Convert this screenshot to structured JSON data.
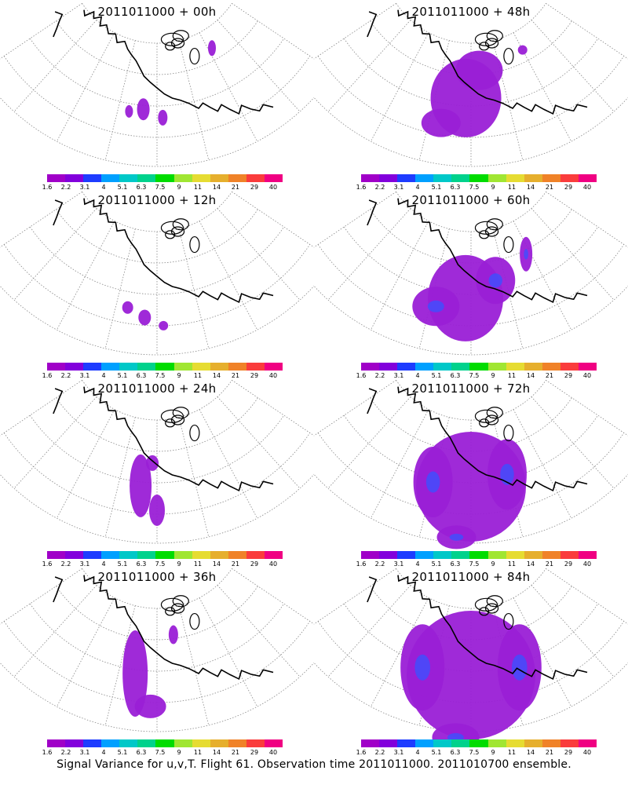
{
  "panels": [
    {
      "title": "2011011000 + 00h",
      "spread": 0
    },
    {
      "title": "2011011000 + 48h",
      "spread": 4
    },
    {
      "title": "2011011000 + 12h",
      "spread": 1
    },
    {
      "title": "2011011000 + 60h",
      "spread": 5
    },
    {
      "title": "2011011000 + 24h",
      "spread": 2
    },
    {
      "title": "2011011000 + 72h",
      "spread": 6
    },
    {
      "title": "2011011000 + 36h",
      "spread": 3
    },
    {
      "title": "2011011000 + 84h",
      "spread": 7
    }
  ],
  "colorbar": {
    "labels": [
      "1.6",
      "2.2",
      "3.1",
      "4",
      "5.1",
      "6.3",
      "7.5",
      "9",
      "11",
      "14",
      "21",
      "29",
      "40"
    ],
    "colors": [
      "#a000c8",
      "#8200dc",
      "#1e3cff",
      "#00a0ff",
      "#00c8c8",
      "#00d28c",
      "#00dc00",
      "#a0e632",
      "#e6dc32",
      "#e6af2d",
      "#f08228",
      "#fa3c3c",
      "#f00082"
    ]
  },
  "footer": "Signal Variance for u,v,T. Flight 61. Observation time 2011011000. 2011010700 ensemble."
}
